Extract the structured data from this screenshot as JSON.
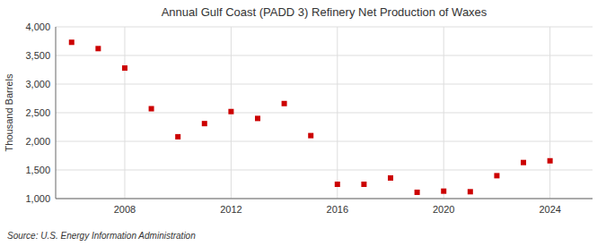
{
  "chart_data": {
    "type": "scatter",
    "title": "Annual Gulf Coast (PADD 3) Refinery Net Production of Waxes",
    "ylabel": "Thousand Barrels",
    "source": "Source: U.S. Energy Information Administration",
    "x": [
      2006,
      2007,
      2008,
      2009,
      2010,
      2011,
      2012,
      2013,
      2014,
      2015,
      2016,
      2017,
      2018,
      2019,
      2020,
      2021,
      2022,
      2023,
      2024
    ],
    "values": [
      3730,
      3620,
      3280,
      2570,
      2080,
      2310,
      2520,
      2400,
      2660,
      2100,
      1250,
      1250,
      1360,
      1110,
      1130,
      1120,
      1400,
      1630,
      1660
    ],
    "color": "#cc0000",
    "marker": "square",
    "xlim": [
      2005.4,
      2025.6
    ],
    "xticks": [
      2008,
      2012,
      2016,
      2020,
      2024
    ],
    "ylim": [
      1000,
      4000
    ],
    "yticks": [
      {
        "value": 1000,
        "label": "1,000"
      },
      {
        "value": 1500,
        "label": "1,500"
      },
      {
        "value": 2000,
        "label": "2,000"
      },
      {
        "value": 2500,
        "label": "2,500"
      },
      {
        "value": 3000,
        "label": "3,000"
      },
      {
        "value": 3500,
        "label": "3,500"
      },
      {
        "value": 4000,
        "label": "4,000"
      }
    ],
    "grid": true
  }
}
